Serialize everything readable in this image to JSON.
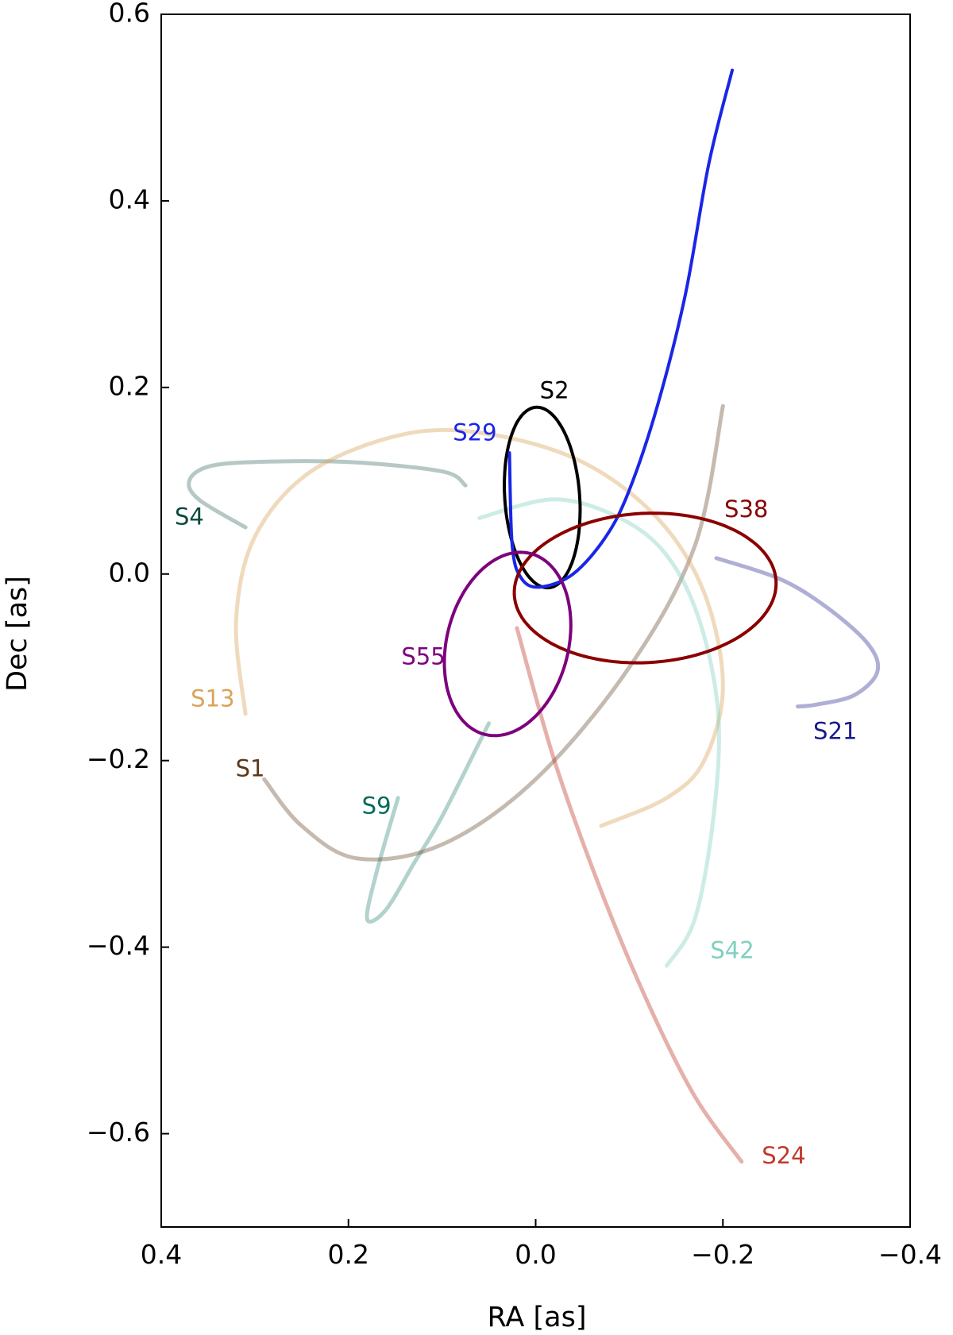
{
  "chart_data": {
    "type": "line",
    "title": "",
    "xlabel": "RA [as]",
    "ylabel": "Dec [as]",
    "xlim": [
      0.4,
      -0.4
    ],
    "ylim": [
      -0.7,
      0.6
    ],
    "xticks": [
      0.4,
      0.2,
      0.0,
      -0.2,
      -0.4
    ],
    "xtick_labels": [
      "0.4",
      "0.2",
      "0.0",
      "−0.2",
      "−0.4"
    ],
    "yticks": [
      0.6,
      0.4,
      0.2,
      0.0,
      -0.2,
      -0.4,
      -0.6
    ],
    "ytick_labels": [
      "0.6",
      "0.4",
      "0.2",
      "0.0",
      "−0.2",
      "−0.4",
      "−0.6"
    ],
    "grid": false,
    "series": [
      {
        "name": "S1",
        "color": "#5a3a1a",
        "opacity": 0.35,
        "points": [
          [
            0.29,
            -0.22
          ],
          [
            0.25,
            -0.27
          ],
          [
            0.19,
            -0.305
          ],
          [
            0.1,
            -0.29
          ],
          [
            0.0,
            -0.22
          ],
          [
            -0.1,
            -0.1
          ],
          [
            -0.17,
            0.03
          ],
          [
            -0.2,
            0.18
          ]
        ],
        "label_pos": [
          0.305,
          -0.21
        ]
      },
      {
        "name": "S2",
        "color": "#000000",
        "opacity": 1.0,
        "ellipse": {
          "center": [
            -0.007,
            0.082
          ],
          "rx": 0.04,
          "ry": 0.097,
          "angle_deg": -4
        },
        "label_pos": [
          -0.02,
          0.195
        ]
      },
      {
        "name": "S4",
        "color": "#0a4a3f",
        "opacity": 0.3,
        "points": [
          [
            0.31,
            0.05
          ],
          [
            0.36,
            0.08
          ],
          [
            0.37,
            0.1
          ],
          [
            0.35,
            0.115
          ],
          [
            0.3,
            0.12
          ],
          [
            0.2,
            0.12
          ],
          [
            0.1,
            0.11
          ],
          [
            0.075,
            0.095
          ]
        ],
        "label_pos": [
          0.37,
          0.06
        ]
      },
      {
        "name": "S9",
        "color": "#006b5b",
        "opacity": 0.3,
        "points": [
          [
            0.147,
            -0.24
          ],
          [
            0.17,
            -0.32
          ],
          [
            0.18,
            -0.37
          ],
          [
            0.16,
            -0.36
          ],
          [
            0.13,
            -0.31
          ],
          [
            0.1,
            -0.26
          ],
          [
            0.05,
            -0.16
          ]
        ],
        "label_pos": [
          0.17,
          -0.25
        ]
      },
      {
        "name": "S13",
        "color": "#d9a35a",
        "opacity": 0.4,
        "points": [
          [
            0.31,
            -0.15
          ],
          [
            0.32,
            -0.05
          ],
          [
            0.3,
            0.04
          ],
          [
            0.24,
            0.11
          ],
          [
            0.14,
            0.15
          ],
          [
            0.05,
            0.15
          ],
          [
            -0.05,
            0.12
          ],
          [
            -0.13,
            0.06
          ],
          [
            -0.18,
            -0.02
          ],
          [
            -0.2,
            -0.12
          ],
          [
            -0.18,
            -0.2
          ],
          [
            -0.14,
            -0.24
          ],
          [
            -0.07,
            -0.27
          ]
        ],
        "label_pos": [
          0.345,
          -0.135
        ]
      },
      {
        "name": "S21",
        "color": "#1a1a8a",
        "opacity": 0.35,
        "points": [
          [
            -0.193,
            0.017
          ],
          [
            -0.26,
            -0.005
          ],
          [
            -0.31,
            -0.035
          ],
          [
            -0.355,
            -0.075
          ],
          [
            -0.365,
            -0.105
          ],
          [
            -0.34,
            -0.13
          ],
          [
            -0.3,
            -0.14
          ],
          [
            -0.28,
            -0.142
          ]
        ],
        "label_pos": [
          -0.32,
          -0.17
        ]
      },
      {
        "name": "S24",
        "color": "#c0392b",
        "opacity": 0.4,
        "points": [
          [
            0.02,
            -0.058
          ],
          [
            -0.02,
            -0.2
          ],
          [
            -0.07,
            -0.34
          ],
          [
            -0.12,
            -0.46
          ],
          [
            -0.17,
            -0.56
          ],
          [
            -0.22,
            -0.63
          ]
        ],
        "label_pos": [
          -0.265,
          -0.625
        ]
      },
      {
        "name": "S29",
        "color": "#1a26e6",
        "opacity": 1.0,
        "points": [
          [
            0.028,
            0.13
          ],
          [
            0.025,
            0.03
          ],
          [
            0.015,
            -0.005
          ],
          [
            -0.005,
            -0.014
          ],
          [
            -0.04,
            0.0
          ],
          [
            -0.075,
            0.04
          ],
          [
            -0.1,
            0.09
          ],
          [
            -0.13,
            0.18
          ],
          [
            -0.16,
            0.3
          ],
          [
            -0.185,
            0.44
          ],
          [
            -0.21,
            0.54
          ]
        ],
        "label_pos": [
          0.065,
          0.15
        ]
      },
      {
        "name": "S38",
        "color": "#8b0000",
        "opacity": 1.0,
        "ellipse": {
          "center": [
            -0.117,
            -0.015
          ],
          "rx": 0.14,
          "ry": 0.08,
          "angle_deg": -3
        },
        "label_pos": [
          -0.225,
          0.068
        ]
      },
      {
        "name": "S42",
        "color": "#7fd0bf",
        "opacity": 0.4,
        "points": [
          [
            0.06,
            0.06
          ],
          [
            -0.02,
            0.08
          ],
          [
            -0.09,
            0.06
          ],
          [
            -0.14,
            0.02
          ],
          [
            -0.175,
            -0.05
          ],
          [
            -0.195,
            -0.15
          ],
          [
            -0.19,
            -0.26
          ],
          [
            -0.17,
            -0.37
          ],
          [
            -0.14,
            -0.42
          ]
        ],
        "label_pos": [
          -0.21,
          -0.405
        ]
      },
      {
        "name": "S55",
        "color": "#7d007d",
        "opacity": 1.0,
        "ellipse": {
          "center": [
            0.03,
            -0.075
          ],
          "rx": 0.065,
          "ry": 0.1,
          "angle_deg": 14
        },
        "label_pos": [
          0.12,
          -0.09
        ]
      }
    ]
  }
}
